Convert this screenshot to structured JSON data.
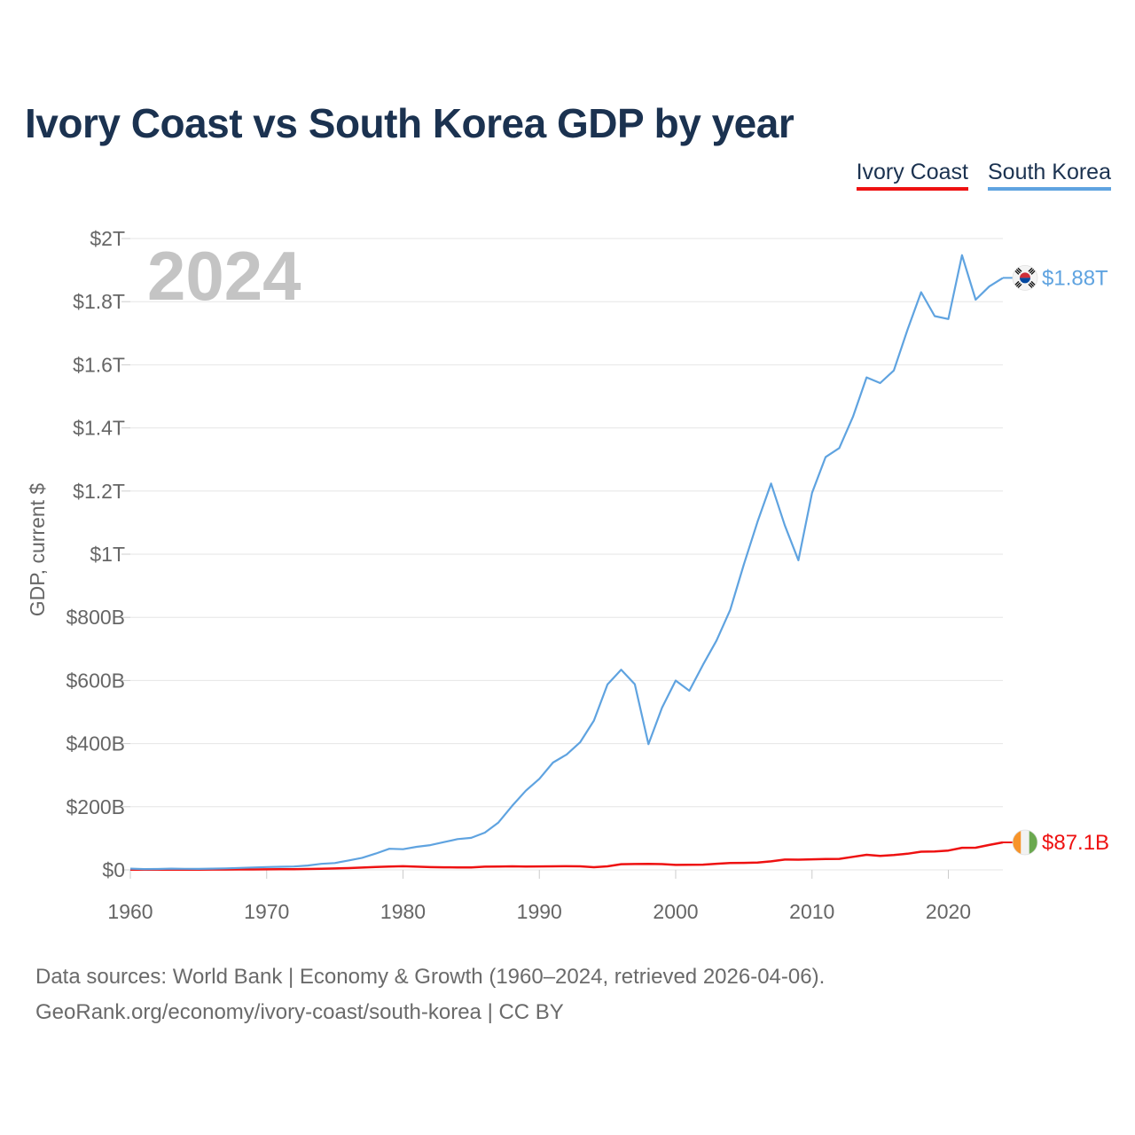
{
  "header": {
    "title": "Ivory Coast vs South Korea GDP by year"
  },
  "footer": {
    "line1": "Data sources: World Bank | Economy & Growth (1960–2024, retrieved 2026-04-06).",
    "line2": "GeoRank.org/economy/ivory-coast/south-korea | CC BY"
  },
  "colors": {
    "ivory_coast": "#ee1111",
    "south_korea": "#5fa3e0",
    "grid": "#e6e6e6"
  },
  "chart_data": {
    "type": "line",
    "title": "Ivory Coast vs South Korea GDP by year",
    "xlabel": "",
    "ylabel": "GDP, current $",
    "year_label": "2024",
    "xlim": [
      1960,
      2024
    ],
    "ylim": [
      0,
      2000
    ],
    "unit": "billion USD",
    "xticks": [
      1960,
      1970,
      1980,
      1990,
      2000,
      2010,
      2020
    ],
    "yticks": [
      {
        "value": 0,
        "label": "$0"
      },
      {
        "value": 200,
        "label": "$200B"
      },
      {
        "value": 400,
        "label": "$400B"
      },
      {
        "value": 600,
        "label": "$600B"
      },
      {
        "value": 800,
        "label": "$800B"
      },
      {
        "value": 1000,
        "label": "$1T"
      },
      {
        "value": 1200,
        "label": "$1.2T"
      },
      {
        "value": 1400,
        "label": "$1.4T"
      },
      {
        "value": 1600,
        "label": "$1.6T"
      },
      {
        "value": 1800,
        "label": "$1.8T"
      },
      {
        "value": 2000,
        "label": "$2T"
      }
    ],
    "x": [
      1960,
      1961,
      1962,
      1963,
      1964,
      1965,
      1966,
      1967,
      1968,
      1969,
      1970,
      1971,
      1972,
      1973,
      1974,
      1975,
      1976,
      1977,
      1978,
      1979,
      1980,
      1981,
      1982,
      1983,
      1984,
      1985,
      1986,
      1987,
      1988,
      1989,
      1990,
      1991,
      1992,
      1993,
      1994,
      1995,
      1996,
      1997,
      1998,
      1999,
      2000,
      2001,
      2002,
      2003,
      2004,
      2005,
      2006,
      2007,
      2008,
      2009,
      2010,
      2011,
      2012,
      2013,
      2014,
      2015,
      2016,
      2017,
      2018,
      2019,
      2020,
      2021,
      2022,
      2023,
      2024
    ],
    "series": [
      {
        "name": "Ivory Coast",
        "color": "#ee1111",
        "end_label": "$87.1B",
        "values": [
          0.5,
          0.6,
          0.6,
          0.7,
          0.9,
          0.9,
          1.0,
          1.1,
          1.3,
          1.5,
          1.8,
          1.9,
          2.2,
          2.9,
          3.7,
          4.6,
          5.5,
          7.4,
          9.0,
          10.5,
          11.5,
          10.2,
          8.8,
          8.1,
          7.8,
          8.0,
          10.2,
          10.8,
          11.2,
          10.6,
          11.0,
          11.1,
          11.5,
          11.1,
          8.3,
          11.1,
          18.0,
          18.4,
          19.2,
          18.3,
          15.6,
          15.9,
          16.7,
          19.5,
          21.6,
          22.2,
          23.3,
          26.9,
          32.5,
          32.3,
          33.5,
          34.6,
          34.9,
          41.3,
          47.8,
          44.4,
          46.8,
          51.1,
          57.6,
          58.5,
          61.3,
          70.0,
          70.2,
          79.0,
          87.1
        ]
      },
      {
        "name": "South Korea",
        "color": "#5fa3e0",
        "end_label": "$1.88T",
        "values": [
          4.0,
          2.4,
          2.8,
          3.9,
          3.5,
          3.1,
          3.8,
          4.8,
          6.1,
          7.7,
          9.0,
          9.9,
          10.8,
          13.8,
          19.2,
          21.7,
          29.8,
          38.3,
          51.8,
          66.9,
          65.4,
          72.9,
          78.4,
          88.0,
          97.5,
          101.3,
          117.9,
          150.1,
          202.4,
          250.5,
          288.5,
          340.0,
          365.4,
          404.7,
          472.9,
          587.3,
          634.1,
          588.2,
          398.3,
          513.8,
          599.8,
          567.4,
          649.6,
          726.8,
          823.7,
          967.8,
          1102.7,
          1223.8,
          1091.9,
          980.7,
          1194.4,
          1308.0,
          1336.2,
          1435.1,
          1560.1,
          1542.2,
          1582.0,
          1710.8,
          1830.1,
          1754.1,
          1744.9,
          1947.1,
          1806.1,
          1848.0,
          1875.4
        ]
      }
    ]
  }
}
